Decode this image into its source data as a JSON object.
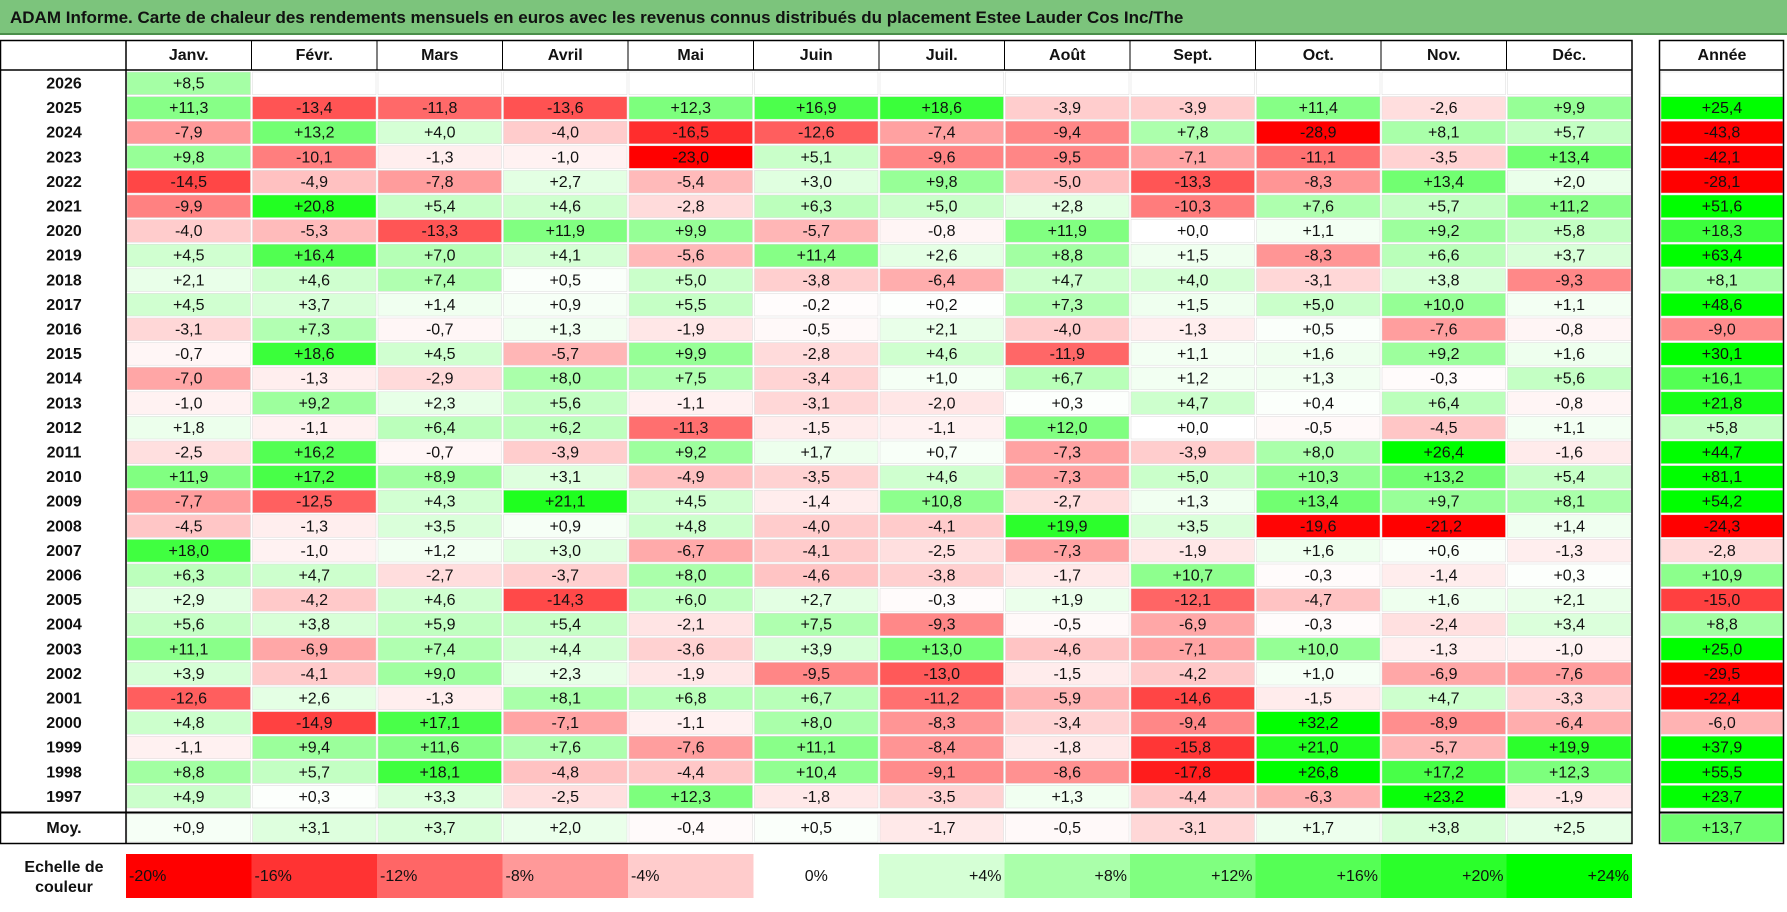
{
  "title": "ADAM Informe. Carte de chaleur des rendements mensuels en euros avec les revenus connus distribués du placement Estee Lauder Cos Inc/The",
  "chart_data": {
    "type": "heatmap",
    "title": "ADAM Informe. Carte de chaleur des rendements mensuels en euros avec les revenus connus distribués du placement Estee Lauder Cos Inc/The",
    "columns": [
      "Janv.",
      "Févr.",
      "Mars",
      "Avril",
      "Mai",
      "Juin",
      "Juil.",
      "Août",
      "Sept.",
      "Oct.",
      "Nov.",
      "Déc."
    ],
    "year_column_label": "Année",
    "average_row_label": "Moy.",
    "scale_label_line1": "Echelle de",
    "scale_label_line2": "couleur",
    "rows": [
      {
        "year": "2026",
        "values": [
          "+8,5",
          "",
          "",
          "",
          "",
          "",
          "",
          "",
          "",
          "",
          "",
          ""
        ],
        "annual": ""
      },
      {
        "year": "2025",
        "values": [
          "+11,3",
          "-13,4",
          "-11,8",
          "-13,6",
          "+12,3",
          "+16,9",
          "+18,6",
          "-3,9",
          "-3,9",
          "+11,4",
          "-2,6",
          "+9,9"
        ],
        "annual": "+25,4"
      },
      {
        "year": "2024",
        "values": [
          "-7,9",
          "+13,2",
          "+4,0",
          "-4,0",
          "-16,5",
          "-12,6",
          "-7,4",
          "-9,4",
          "+7,8",
          "-28,9",
          "+8,1",
          "+5,7"
        ],
        "annual": "-43,8"
      },
      {
        "year": "2023",
        "values": [
          "+9,8",
          "-10,1",
          "-1,3",
          "-1,0",
          "-23,0",
          "+5,1",
          "-9,6",
          "-9,5",
          "-7,1",
          "-11,1",
          "-3,5",
          "+13,4"
        ],
        "annual": "-42,1"
      },
      {
        "year": "2022",
        "values": [
          "-14,5",
          "-4,9",
          "-7,8",
          "+2,7",
          "-5,4",
          "+3,0",
          "+9,8",
          "-5,0",
          "-13,3",
          "-8,3",
          "+13,4",
          "+2,0"
        ],
        "annual": "-28,1"
      },
      {
        "year": "2021",
        "values": [
          "-9,9",
          "+20,8",
          "+5,4",
          "+4,6",
          "-2,8",
          "+6,3",
          "+5,0",
          "+2,8",
          "-10,3",
          "+7,6",
          "+5,7",
          "+11,2"
        ],
        "annual": "+51,6"
      },
      {
        "year": "2020",
        "values": [
          "-4,0",
          "-5,3",
          "-13,3",
          "+11,9",
          "+9,9",
          "-5,7",
          "-0,8",
          "+11,9",
          "+0,0",
          "+1,1",
          "+9,2",
          "+5,8"
        ],
        "annual": "+18,3"
      },
      {
        "year": "2019",
        "values": [
          "+4,5",
          "+16,4",
          "+7,0",
          "+4,1",
          "-5,6",
          "+11,4",
          "+2,6",
          "+8,8",
          "+1,5",
          "-8,3",
          "+6,6",
          "+3,7"
        ],
        "annual": "+63,4"
      },
      {
        "year": "2018",
        "values": [
          "+2,1",
          "+4,6",
          "+7,4",
          "+0,5",
          "+5,0",
          "-3,8",
          "-6,4",
          "+4,7",
          "+4,0",
          "-3,1",
          "+3,8",
          "-9,3"
        ],
        "annual": "+8,1"
      },
      {
        "year": "2017",
        "values": [
          "+4,5",
          "+3,7",
          "+1,4",
          "+0,9",
          "+5,5",
          "-0,2",
          "+0,2",
          "+7,3",
          "+1,5",
          "+5,0",
          "+10,0",
          "+1,1"
        ],
        "annual": "+48,6"
      },
      {
        "year": "2016",
        "values": [
          "-3,1",
          "+7,3",
          "-0,7",
          "+1,3",
          "-1,9",
          "-0,5",
          "+2,1",
          "-4,0",
          "-1,3",
          "+0,5",
          "-7,6",
          "-0,8"
        ],
        "annual": "-9,0"
      },
      {
        "year": "2015",
        "values": [
          "-0,7",
          "+18,6",
          "+4,5",
          "-5,7",
          "+9,9",
          "-2,8",
          "+4,6",
          "-11,9",
          "+1,1",
          "+1,6",
          "+9,2",
          "+1,6"
        ],
        "annual": "+30,1"
      },
      {
        "year": "2014",
        "values": [
          "-7,0",
          "-1,3",
          "-2,9",
          "+8,0",
          "+7,5",
          "-3,4",
          "+1,0",
          "+6,7",
          "+1,2",
          "+1,3",
          "-0,3",
          "+5,6"
        ],
        "annual": "+16,1"
      },
      {
        "year": "2013",
        "values": [
          "-1,0",
          "+9,2",
          "+2,3",
          "+5,6",
          "-1,1",
          "-3,1",
          "-2,0",
          "+0,3",
          "+4,7",
          "+0,4",
          "+6,4",
          "-0,8"
        ],
        "annual": "+21,8"
      },
      {
        "year": "2012",
        "values": [
          "+1,8",
          "-1,1",
          "+6,4",
          "+6,2",
          "-11,3",
          "-1,5",
          "-1,1",
          "+12,0",
          "+0,0",
          "-0,5",
          "-4,5",
          "+1,1"
        ],
        "annual": "+5,8"
      },
      {
        "year": "2011",
        "values": [
          "-2,5",
          "+16,2",
          "-0,7",
          "-3,9",
          "+9,2",
          "+1,7",
          "+0,7",
          "-7,3",
          "-3,9",
          "+8,0",
          "+26,4",
          "-1,6"
        ],
        "annual": "+44,7"
      },
      {
        "year": "2010",
        "values": [
          "+11,9",
          "+17,2",
          "+8,9",
          "+3,1",
          "-4,9",
          "-3,5",
          "+4,6",
          "-7,3",
          "+5,0",
          "+10,3",
          "+13,2",
          "+5,4"
        ],
        "annual": "+81,1"
      },
      {
        "year": "2009",
        "values": [
          "-7,7",
          "-12,5",
          "+4,3",
          "+21,1",
          "+4,5",
          "-1,4",
          "+10,8",
          "-2,7",
          "+1,3",
          "+13,4",
          "+9,7",
          "+8,1"
        ],
        "annual": "+54,2"
      },
      {
        "year": "2008",
        "values": [
          "-4,5",
          "-1,3",
          "+3,5",
          "+0,9",
          "+4,8",
          "-4,0",
          "-4,1",
          "+19,9",
          "+3,5",
          "-19,6",
          "-21,2",
          "+1,4"
        ],
        "annual": "-24,3"
      },
      {
        "year": "2007",
        "values": [
          "+18,0",
          "-1,0",
          "+1,2",
          "+3,0",
          "-6,7",
          "-4,1",
          "-2,5",
          "-7,3",
          "-1,9",
          "+1,6",
          "+0,6",
          "-1,3"
        ],
        "annual": "-2,8"
      },
      {
        "year": "2006",
        "values": [
          "+6,3",
          "+4,7",
          "-2,7",
          "-3,7",
          "+8,0",
          "-4,6",
          "-3,8",
          "-1,7",
          "+10,7",
          "-0,3",
          "-1,4",
          "+0,3"
        ],
        "annual": "+10,9"
      },
      {
        "year": "2005",
        "values": [
          "+2,9",
          "-4,2",
          "+4,6",
          "-14,3",
          "+6,0",
          "+2,7",
          "-0,3",
          "+1,9",
          "-12,1",
          "-4,7",
          "+1,6",
          "+2,1"
        ],
        "annual": "-15,0"
      },
      {
        "year": "2004",
        "values": [
          "+5,6",
          "+3,8",
          "+5,9",
          "+5,4",
          "-2,1",
          "+7,5",
          "-9,3",
          "-0,5",
          "-6,9",
          "-0,3",
          "-2,4",
          "+3,4"
        ],
        "annual": "+8,8"
      },
      {
        "year": "2003",
        "values": [
          "+11,1",
          "-6,9",
          "+7,4",
          "+4,4",
          "-3,6",
          "+3,9",
          "+13,0",
          "-4,6",
          "-7,1",
          "+10,0",
          "-1,3",
          "-1,0"
        ],
        "annual": "+25,0"
      },
      {
        "year": "2002",
        "values": [
          "+3,9",
          "-4,1",
          "+9,0",
          "+2,3",
          "-1,9",
          "-9,5",
          "-13,0",
          "-1,5",
          "-4,2",
          "+1,0",
          "-6,9",
          "-7,6"
        ],
        "annual": "-29,5"
      },
      {
        "year": "2001",
        "values": [
          "-12,6",
          "+2,6",
          "-1,3",
          "+8,1",
          "+6,8",
          "+6,7",
          "-11,2",
          "-5,9",
          "-14,6",
          "-1,5",
          "+4,7",
          "-3,3"
        ],
        "annual": "-22,4"
      },
      {
        "year": "2000",
        "values": [
          "+4,8",
          "-14,9",
          "+17,1",
          "-7,1",
          "-1,1",
          "+8,0",
          "-8,3",
          "-3,4",
          "-9,4",
          "+32,2",
          "-8,9",
          "-6,4"
        ],
        "annual": "-6,0"
      },
      {
        "year": "1999",
        "values": [
          "-1,1",
          "+9,4",
          "+11,6",
          "+7,6",
          "-7,6",
          "+11,1",
          "-8,4",
          "-1,8",
          "-15,8",
          "+21,0",
          "-5,7",
          "+19,9"
        ],
        "annual": "+37,9"
      },
      {
        "year": "1998",
        "values": [
          "+8,8",
          "+5,7",
          "+18,1",
          "-4,8",
          "-4,4",
          "+10,4",
          "-9,1",
          "-8,6",
          "-17,8",
          "+26,8",
          "+17,2",
          "+12,3"
        ],
        "annual": "+55,5"
      },
      {
        "year": "1997",
        "values": [
          "+4,9",
          "+0,3",
          "+3,3",
          "-2,5",
          "+12,3",
          "-1,8",
          "-3,5",
          "+1,3",
          "-4,4",
          "-6,3",
          "+23,2",
          "-1,9"
        ],
        "annual": "+23,7"
      }
    ],
    "average": {
      "values": [
        "+0,9",
        "+3,1",
        "+3,7",
        "+2,0",
        "-0,4",
        "+0,5",
        "-1,7",
        "-0,5",
        "-3,1",
        "+1,7",
        "+3,8",
        "+2,5"
      ],
      "annual": "+13,7"
    },
    "color_scale": [
      {
        "label": "-20%",
        "value": -20,
        "color": "#ff0000"
      },
      {
        "label": "-16%",
        "value": -16,
        "color": "#ff3333"
      },
      {
        "label": "-12%",
        "value": -12,
        "color": "#ff6666"
      },
      {
        "label": "-8%",
        "value": -8,
        "color": "#ff9999"
      },
      {
        "label": "-4%",
        "value": -4,
        "color": "#ffcccc"
      },
      {
        "label": "0%",
        "value": 0,
        "color": "#ffffff"
      },
      {
        "label": "+4%",
        "value": 4,
        "color": "#d5ffd5"
      },
      {
        "label": "+8%",
        "value": 8,
        "color": "#aaffaa"
      },
      {
        "label": "+12%",
        "value": 12,
        "color": "#80ff80"
      },
      {
        "label": "+16%",
        "value": 16,
        "color": "#55ff55"
      },
      {
        "label": "+20%",
        "value": 20,
        "color": "#2bff2b"
      },
      {
        "label": "+24%",
        "value": 24,
        "color": "#00ff00"
      }
    ]
  }
}
